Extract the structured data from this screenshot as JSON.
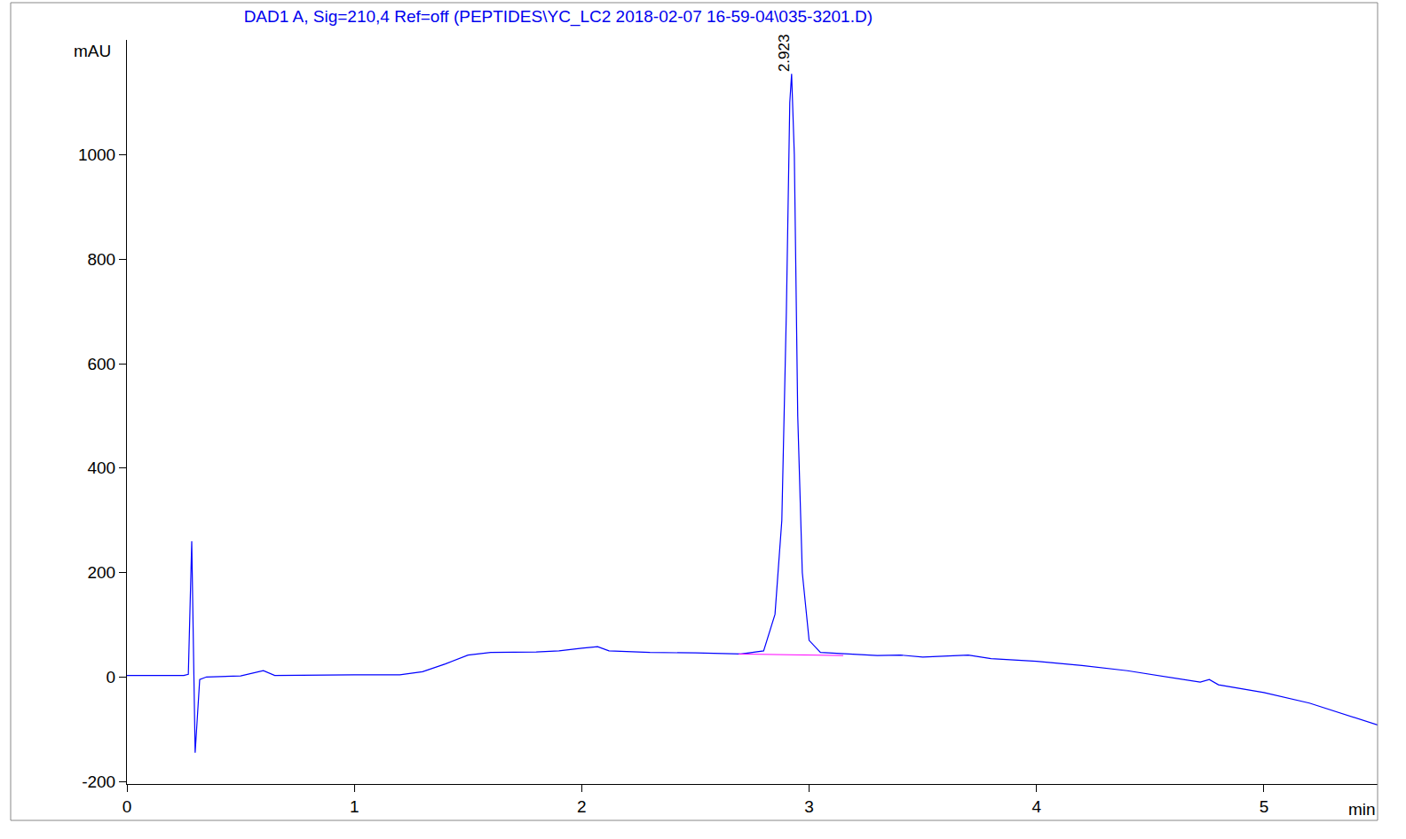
{
  "chart_data": {
    "type": "line",
    "title": "DAD1 A, Sig=210,4 Ref=off (PEPTIDES\\YC_LC2 2018-02-07 16-59-04\\035-3201.D)",
    "x_label": "min",
    "y_label": "mAU",
    "xlim": [
      0,
      5.5
    ],
    "ylim": [
      -205,
      1220
    ],
    "xticks": [
      0,
      1,
      2,
      3,
      4,
      5
    ],
    "yticks": [
      -200,
      0,
      200,
      400,
      600,
      800,
      1000
    ],
    "grid": false,
    "series": [
      {
        "color": "#0000ff",
        "x": [
          0,
          0.25,
          0.27,
          0.285,
          0.3,
          0.32,
          0.35,
          0.5,
          0.6,
          0.65,
          1.0,
          1.2,
          1.3,
          1.4,
          1.5,
          1.6,
          1.8,
          1.9,
          2.0,
          2.07,
          2.12,
          2.3,
          2.5,
          2.7,
          2.8,
          2.85,
          2.88,
          2.9,
          2.915,
          2.923,
          2.935,
          2.95,
          2.97,
          3.0,
          3.05,
          3.2,
          3.3,
          3.4,
          3.5,
          3.7,
          3.8,
          4.0,
          4.2,
          4.4,
          4.6,
          4.72,
          4.76,
          4.8,
          5.0,
          5.2,
          5.5
        ],
        "values": [
          3,
          3,
          5,
          260,
          -145,
          -5,
          0,
          2,
          12,
          3,
          4,
          4,
          10,
          25,
          42,
          47,
          48,
          50,
          55,
          58,
          50,
          47,
          46,
          44,
          50,
          120,
          300,
          700,
          1100,
          1155,
          1000,
          500,
          200,
          70,
          47,
          44,
          41,
          42,
          38,
          42,
          35,
          30,
          22,
          12,
          -2,
          -10,
          -5,
          -15,
          -30,
          -50,
          -92
        ]
      },
      {
        "color": "#ff00ff",
        "x": [
          2.69,
          3.15
        ],
        "values": [
          44,
          41
        ]
      }
    ],
    "annotations": [
      {
        "text": "2.923",
        "x": 2.923,
        "y": 1155
      }
    ]
  }
}
